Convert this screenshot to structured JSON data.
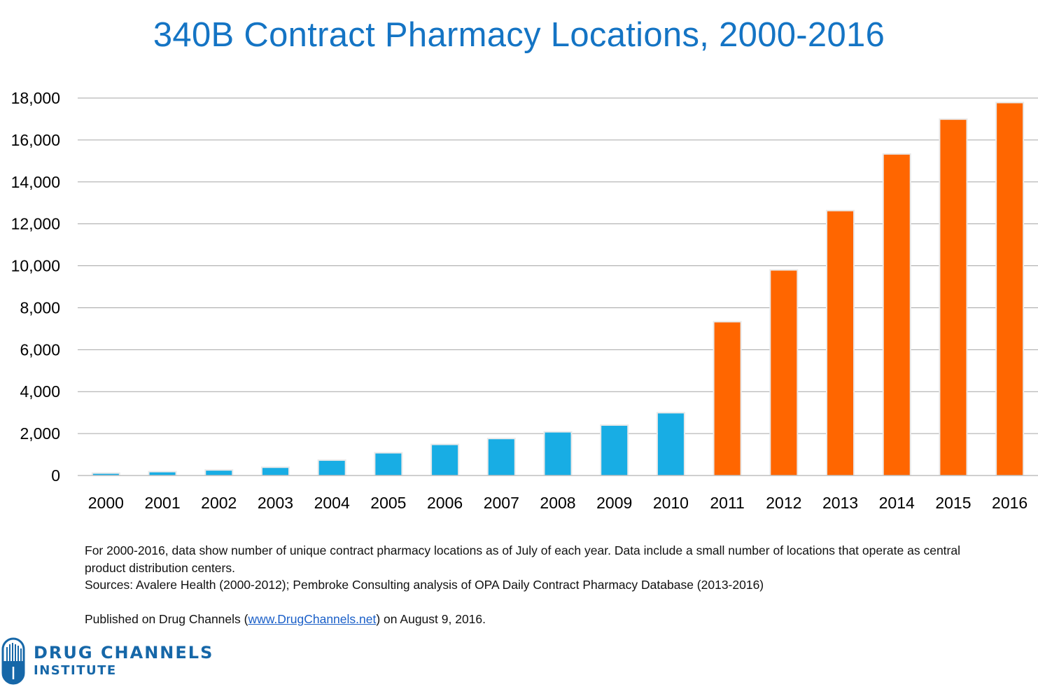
{
  "chart_data": {
    "type": "bar",
    "title": "340B Contract Pharmacy Locations, 2000-2016",
    "xlabel": "",
    "ylabel": "",
    "ylim": [
      0,
      18000
    ],
    "yticks": [
      0,
      2000,
      4000,
      6000,
      8000,
      10000,
      12000,
      14000,
      16000,
      18000
    ],
    "ytick_labels": [
      "0",
      "2,000",
      "4,000",
      "6,000",
      "8,000",
      "10,000",
      "12,000",
      "14,000",
      "16,000",
      "18,000"
    ],
    "grid": true,
    "categories": [
      "2000",
      "2001",
      "2002",
      "2003",
      "2004",
      "2005",
      "2006",
      "2007",
      "2008",
      "2009",
      "2010",
      "2011",
      "2012",
      "2013",
      "2014",
      "2015",
      "2016"
    ],
    "values": [
      80,
      150,
      230,
      360,
      700,
      1050,
      1450,
      1730,
      2050,
      2370,
      2960,
      7300,
      9770,
      12600,
      15300,
      16960,
      17750
    ],
    "bar_colors": [
      "#18ade4",
      "#18ade4",
      "#18ade4",
      "#18ade4",
      "#18ade4",
      "#18ade4",
      "#18ade4",
      "#18ade4",
      "#18ade4",
      "#18ade4",
      "#18ade4",
      "#ff6600",
      "#ff6600",
      "#ff6600",
      "#ff6600",
      "#ff6600",
      "#ff6600"
    ]
  },
  "notes": {
    "line1": "For 2000-2016, data show number of unique contract pharmacy locations as of July of each year. Data include a small number of locations that operate as central product distribution centers.",
    "line2": "Sources: Avalere Health (2000-2012); Pembroke Consulting  analysis of OPA Daily Contract Pharmacy Database (2013-2016)"
  },
  "published": {
    "prefix": "Published on Drug Channels (",
    "link": "www.DrugChannels.net",
    "suffix": ") on August 9, 2016."
  },
  "logo": {
    "line1": "DRUG CHANNELS",
    "line2": "INSTITUTE"
  }
}
